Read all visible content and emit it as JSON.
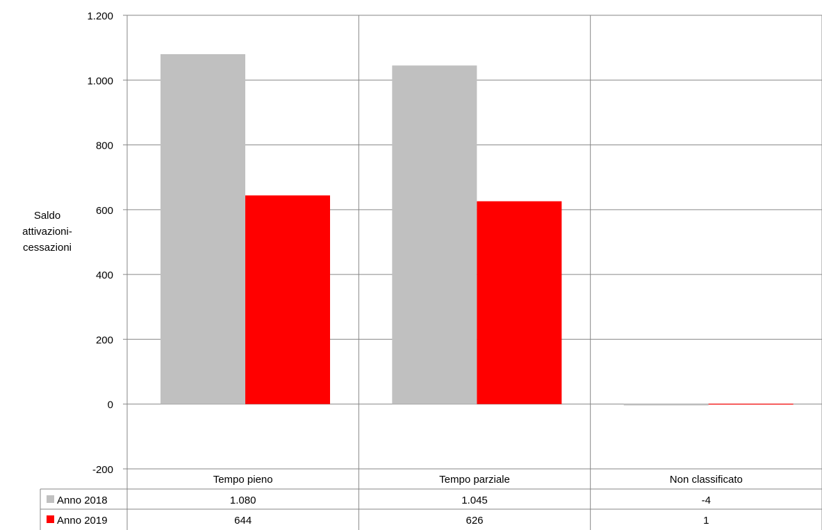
{
  "chart_data": {
    "type": "bar",
    "ylabel_lines": [
      "Saldo",
      "attivazioni-",
      "cessazioni"
    ],
    "categories": [
      "Tempo pieno",
      "Tempo parziale",
      "Non classificato"
    ],
    "series": [
      {
        "name": "Anno 2018",
        "color": "#c0c0c0",
        "values": [
          1080,
          1045,
          -4
        ],
        "labels": [
          "1.080",
          "1.045",
          "-4"
        ]
      },
      {
        "name": "Anno 2019",
        "color": "#ff0000",
        "values": [
          644,
          626,
          1
        ],
        "labels": [
          "644",
          "626",
          "1"
        ]
      }
    ],
    "ylim": [
      -200,
      1200
    ],
    "yticks": [
      -200,
      0,
      200,
      400,
      600,
      800,
      1000,
      1200
    ],
    "ytick_labels": [
      "-200",
      "0",
      "200",
      "400",
      "600",
      "800",
      "1.000",
      "1.200"
    ],
    "grid": true,
    "legend": "data table below chart"
  }
}
